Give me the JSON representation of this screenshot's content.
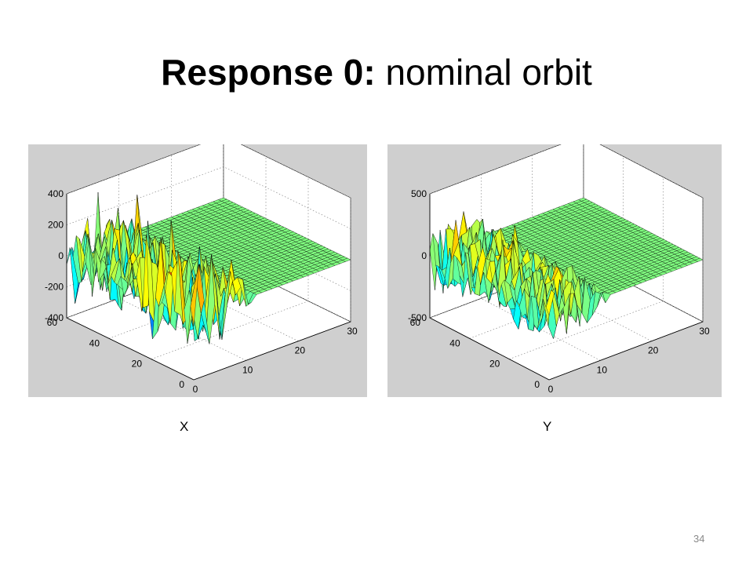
{
  "slide": {
    "title_bold": "Response 0:",
    "title_rest": "nominal orbit",
    "page_number": "34"
  },
  "chart_data": [
    {
      "type": "surface",
      "caption": "X",
      "x_ticks": [
        "0",
        "10",
        "20",
        "30"
      ],
      "y_ticks": [
        "0",
        "20",
        "40",
        "60"
      ],
      "z_ticks": [
        "-400",
        "-200",
        "0",
        "200",
        "400"
      ],
      "xlim": [
        0,
        30
      ],
      "ylim": [
        0,
        60
      ],
      "zlim": [
        -400,
        400
      ],
      "grid": true,
      "colormap": "jet",
      "amplitude": 320,
      "flat_region": "x > 10 is flat (~0), oscillation decays between x = 8 and 12"
    },
    {
      "type": "surface",
      "caption": "Y",
      "x_ticks": [
        "0",
        "10",
        "20",
        "30"
      ],
      "y_ticks": [
        "0",
        "20",
        "40",
        "60"
      ],
      "z_ticks": [
        "-500",
        "0",
        "500"
      ],
      "xlim": [
        0,
        30
      ],
      "ylim": [
        0,
        60
      ],
      "zlim": [
        -500,
        500
      ],
      "grid": true,
      "colormap": "jet",
      "amplitude": 300,
      "flat_region": "x > 10 is flat (~0), oscillation decays between x = 8 and 12"
    }
  ]
}
